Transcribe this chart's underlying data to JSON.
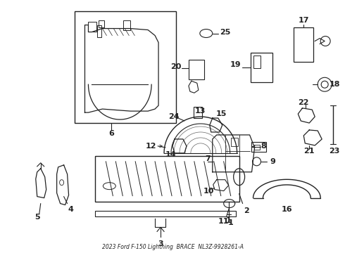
{
  "background_color": "#ffffff",
  "line_color": "#222222",
  "fig_width": 4.9,
  "fig_height": 3.6,
  "dpi": 100,
  "footnote": "2023 Ford F-150 Lightning  BRACE  NL3Z-9928261-A"
}
